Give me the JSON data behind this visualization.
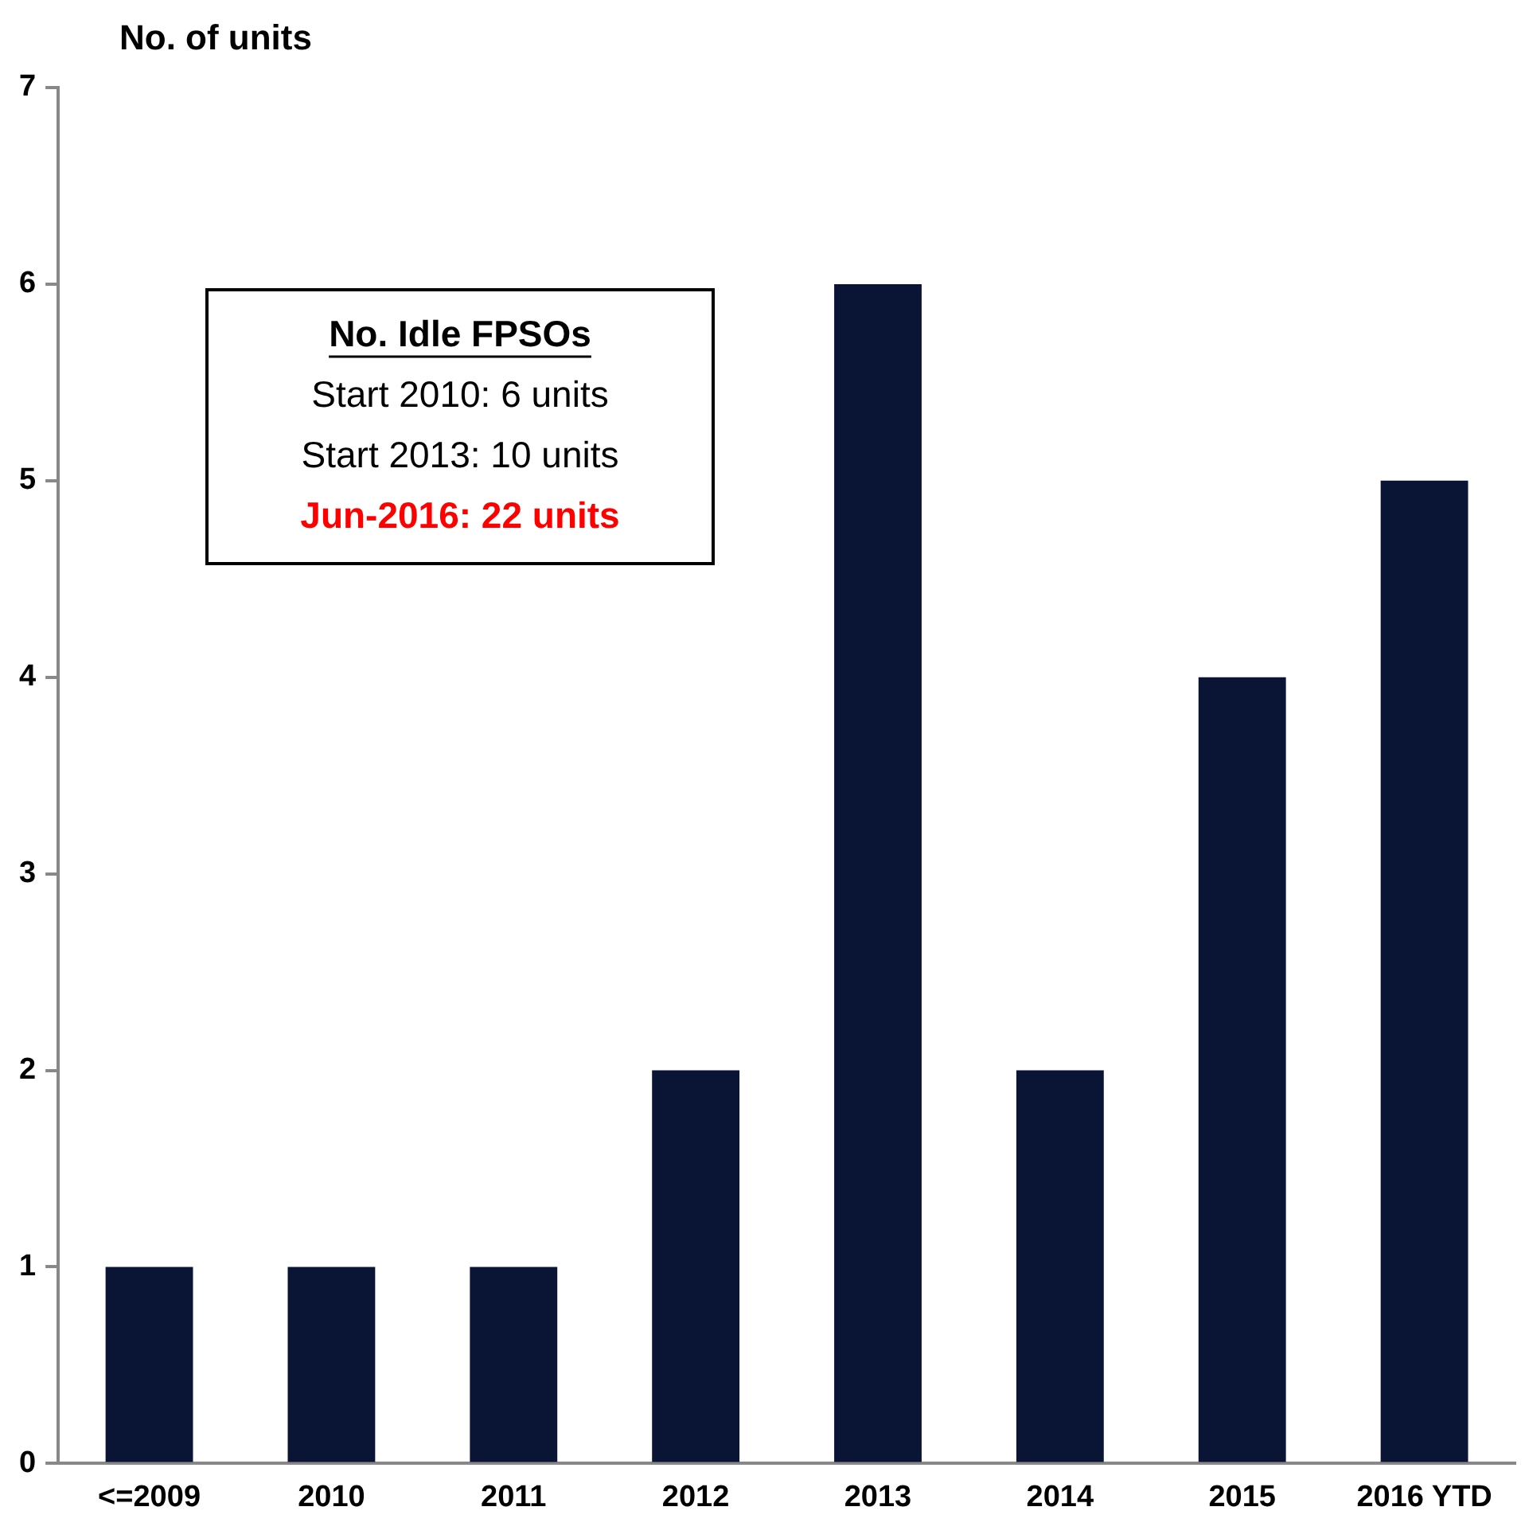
{
  "chart_data": {
    "type": "bar",
    "ylabel": "No. of units",
    "categories": [
      "<=2009",
      "2010",
      "2011",
      "2012",
      "2013",
      "2014",
      "2015",
      "2016 YTD"
    ],
    "values": [
      1,
      1,
      1,
      2,
      6,
      2,
      4,
      5
    ],
    "color": "#0a1535",
    "ylim": [
      0,
      7
    ],
    "yticks": [
      0,
      1,
      2,
      3,
      4,
      5,
      6,
      7
    ],
    "grid": false,
    "annotations": [
      "No. Idle FPSOs",
      "Start 2010: 6 units",
      "Start 2013: 10 units",
      "Jun-2016: 22 units"
    ]
  }
}
